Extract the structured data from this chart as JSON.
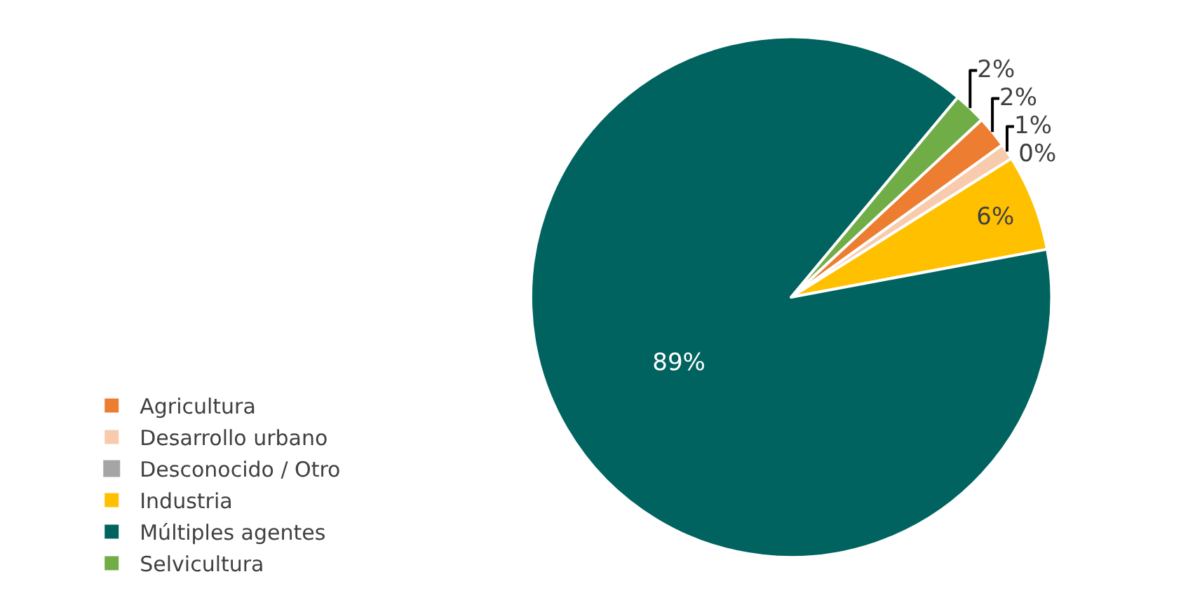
{
  "chart_data": {
    "type": "pie",
    "categories": [
      "Agricultura",
      "Desarrollo urbano",
      "Desconocido / Otro",
      "Industria",
      "Múltiples agentes",
      "Selvicultura"
    ],
    "values": [
      2,
      1,
      0,
      6,
      89,
      2
    ],
    "colors": [
      "#ed7d31",
      "#f8cbad",
      "#a5a5a5",
      "#ffc000",
      "#00635f",
      "#70ad47"
    ],
    "value_labels": [
      "2%",
      "1%",
      "0%",
      "6%",
      "89%",
      "2%"
    ],
    "legend": "bottom left"
  }
}
